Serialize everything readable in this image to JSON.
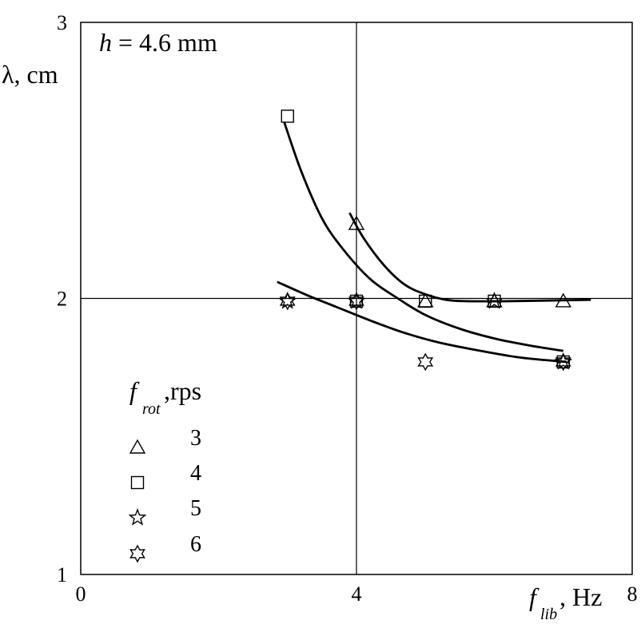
{
  "chart_data": {
    "type": "scatter",
    "annotation": {
      "var": "h",
      "rest": " = 4.6 mm"
    },
    "xlabel": {
      "main": "f",
      "sub": "lib",
      "unit": ", Hz"
    },
    "ylabel": "λ, cm",
    "xlim": [
      0,
      8
    ],
    "ylim": [
      1,
      3
    ],
    "x_ticks": [
      "0",
      "4",
      "8"
    ],
    "y_ticks": [
      "1",
      "2",
      "3"
    ],
    "grid_lines": {
      "x": 4,
      "y": 2
    },
    "legend": {
      "title_main": "f",
      "title_sub": "rot",
      "title_unit": ",rps",
      "position": "bottom-left"
    },
    "series": [
      {
        "name": "3",
        "marker": "triangle",
        "points": [
          [
            4,
            2.27
          ],
          [
            5,
            1.99
          ],
          [
            6,
            1.99
          ],
          [
            7,
            1.99
          ]
        ]
      },
      {
        "name": "4",
        "marker": "square",
        "points": [
          [
            3,
            2.66
          ],
          [
            4,
            1.99
          ],
          [
            5,
            1.99
          ],
          [
            6,
            1.99
          ],
          [
            7,
            1.77
          ]
        ]
      },
      {
        "name": "5",
        "marker": "star5",
        "points": [
          [
            3,
            1.99
          ],
          [
            4,
            1.99
          ],
          [
            6,
            1.99
          ],
          [
            7,
            1.77
          ]
        ]
      },
      {
        "name": "6",
        "marker": "star6",
        "points": [
          [
            3,
            1.99
          ],
          [
            4,
            1.99
          ],
          [
            5,
            1.77
          ],
          [
            7,
            1.77
          ]
        ]
      }
    ],
    "fit_curves": [
      [
        [
          3.9,
          2.31
        ],
        [
          4.1,
          2.22
        ],
        [
          4.4,
          2.12
        ],
        [
          4.7,
          2.05
        ],
        [
          5.0,
          2.015
        ],
        [
          5.3,
          1.995
        ],
        [
          5.6,
          1.99
        ],
        [
          6.2,
          1.99
        ],
        [
          7.4,
          1.995
        ]
      ],
      [
        [
          2.95,
          2.64
        ],
        [
          3.2,
          2.46
        ],
        [
          3.5,
          2.29
        ],
        [
          3.8,
          2.18
        ],
        [
          4.2,
          2.07
        ],
        [
          4.6,
          2.0
        ],
        [
          5.0,
          1.94
        ],
        [
          5.5,
          1.89
        ],
        [
          6.0,
          1.855
        ],
        [
          6.5,
          1.83
        ],
        [
          7.0,
          1.81
        ]
      ],
      [
        [
          2.85,
          2.06
        ],
        [
          3.3,
          2.01
        ],
        [
          3.7,
          1.97
        ],
        [
          4.2,
          1.92
        ],
        [
          4.7,
          1.875
        ],
        [
          5.2,
          1.84
        ],
        [
          5.8,
          1.81
        ],
        [
          6.4,
          1.785
        ],
        [
          7.05,
          1.77
        ]
      ]
    ]
  }
}
